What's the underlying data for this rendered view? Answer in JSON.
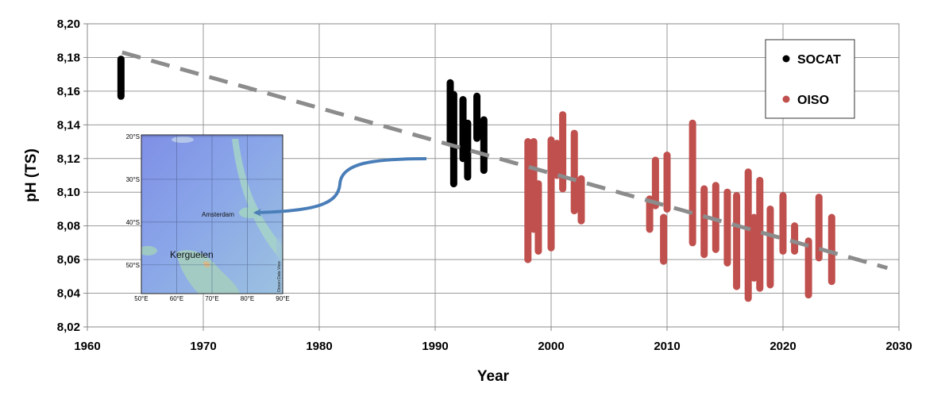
{
  "chart_data": {
    "type": "scatter",
    "title": "",
    "xlabel": "Year",
    "ylabel": "pH (TS)",
    "xlim": [
      1960,
      2030
    ],
    "ylim": [
      8.02,
      8.2
    ],
    "x_ticks": [
      "1960",
      "1970",
      "1980",
      "1990",
      "2000",
      "2010",
      "2020",
      "2030"
    ],
    "y_ticks": [
      "8,02",
      "8,04",
      "8,06",
      "8,08",
      "8,10",
      "8,12",
      "8,14",
      "8,16",
      "8,18",
      "8,20"
    ],
    "grid": true,
    "legend_position": "top-right",
    "series": [
      {
        "name": "SOCAT",
        "color": "#000000",
        "ranges": [
          {
            "x": 1962.9,
            "ymin": 8.157,
            "ymax": 8.179
          },
          {
            "x": 1991.3,
            "ymin": 8.13,
            "ymax": 8.165
          },
          {
            "x": 1991.6,
            "ymin": 8.105,
            "ymax": 8.158
          },
          {
            "x": 1992.4,
            "ymin": 8.12,
            "ymax": 8.155
          },
          {
            "x": 1992.8,
            "ymin": 8.109,
            "ymax": 8.141
          },
          {
            "x": 1993.6,
            "ymin": 8.132,
            "ymax": 8.157
          },
          {
            "x": 1994.2,
            "ymin": 8.113,
            "ymax": 8.143
          }
        ]
      },
      {
        "name": "OISO",
        "color": "#c0504d",
        "ranges": [
          {
            "x": 1998.0,
            "ymin": 8.06,
            "ymax": 8.13
          },
          {
            "x": 1998.5,
            "ymin": 8.078,
            "ymax": 8.13
          },
          {
            "x": 1998.9,
            "ymin": 8.065,
            "ymax": 8.105
          },
          {
            "x": 2000.0,
            "ymin": 8.067,
            "ymax": 8.131
          },
          {
            "x": 2000.5,
            "ymin": 8.11,
            "ymax": 8.129
          },
          {
            "x": 2001.0,
            "ymin": 8.102,
            "ymax": 8.146
          },
          {
            "x": 2002.0,
            "ymin": 8.089,
            "ymax": 8.135
          },
          {
            "x": 2002.6,
            "ymin": 8.083,
            "ymax": 8.108
          },
          {
            "x": 2008.5,
            "ymin": 8.078,
            "ymax": 8.096
          },
          {
            "x": 2009.0,
            "ymin": 8.092,
            "ymax": 8.119
          },
          {
            "x": 2009.7,
            "ymin": 8.059,
            "ymax": 8.085
          },
          {
            "x": 2010.0,
            "ymin": 8.09,
            "ymax": 8.122
          },
          {
            "x": 2012.2,
            "ymin": 8.07,
            "ymax": 8.141
          },
          {
            "x": 2013.2,
            "ymin": 8.063,
            "ymax": 8.102
          },
          {
            "x": 2014.2,
            "ymin": 8.066,
            "ymax": 8.104
          },
          {
            "x": 2015.2,
            "ymin": 8.058,
            "ymax": 8.1
          },
          {
            "x": 2016.0,
            "ymin": 8.044,
            "ymax": 8.098
          },
          {
            "x": 2017.0,
            "ymin": 8.037,
            "ymax": 8.112
          },
          {
            "x": 2017.5,
            "ymin": 8.049,
            "ymax": 8.085
          },
          {
            "x": 2018.0,
            "ymin": 8.043,
            "ymax": 8.107
          },
          {
            "x": 2018.9,
            "ymin": 8.045,
            "ymax": 8.09
          },
          {
            "x": 2020.0,
            "ymin": 8.065,
            "ymax": 8.098
          },
          {
            "x": 2021.0,
            "ymin": 8.065,
            "ymax": 8.08
          },
          {
            "x": 2022.2,
            "ymin": 8.039,
            "ymax": 8.071
          },
          {
            "x": 2023.1,
            "ymin": 8.061,
            "ymax": 8.097
          },
          {
            "x": 2024.2,
            "ymin": 8.047,
            "ymax": 8.085
          }
        ]
      }
    ],
    "trendline": {
      "color": "#8c8c8c",
      "x": [
        1963,
        2029
      ],
      "y": [
        8.183,
        8.055
      ]
    },
    "annotation": {
      "arrow_color": "#4a7eb8"
    },
    "inset_map": {
      "lat_ticks": [
        "20°S",
        "30°S",
        "40°S",
        "50°S"
      ],
      "lon_ticks": [
        "50°E",
        "60°E",
        "70°E",
        "80°E",
        "90°E"
      ],
      "labels": {
        "amsterdam": "Amsterdam",
        "kerguelen": "Kerguelen",
        "credit": "Ocean Data View"
      }
    }
  }
}
